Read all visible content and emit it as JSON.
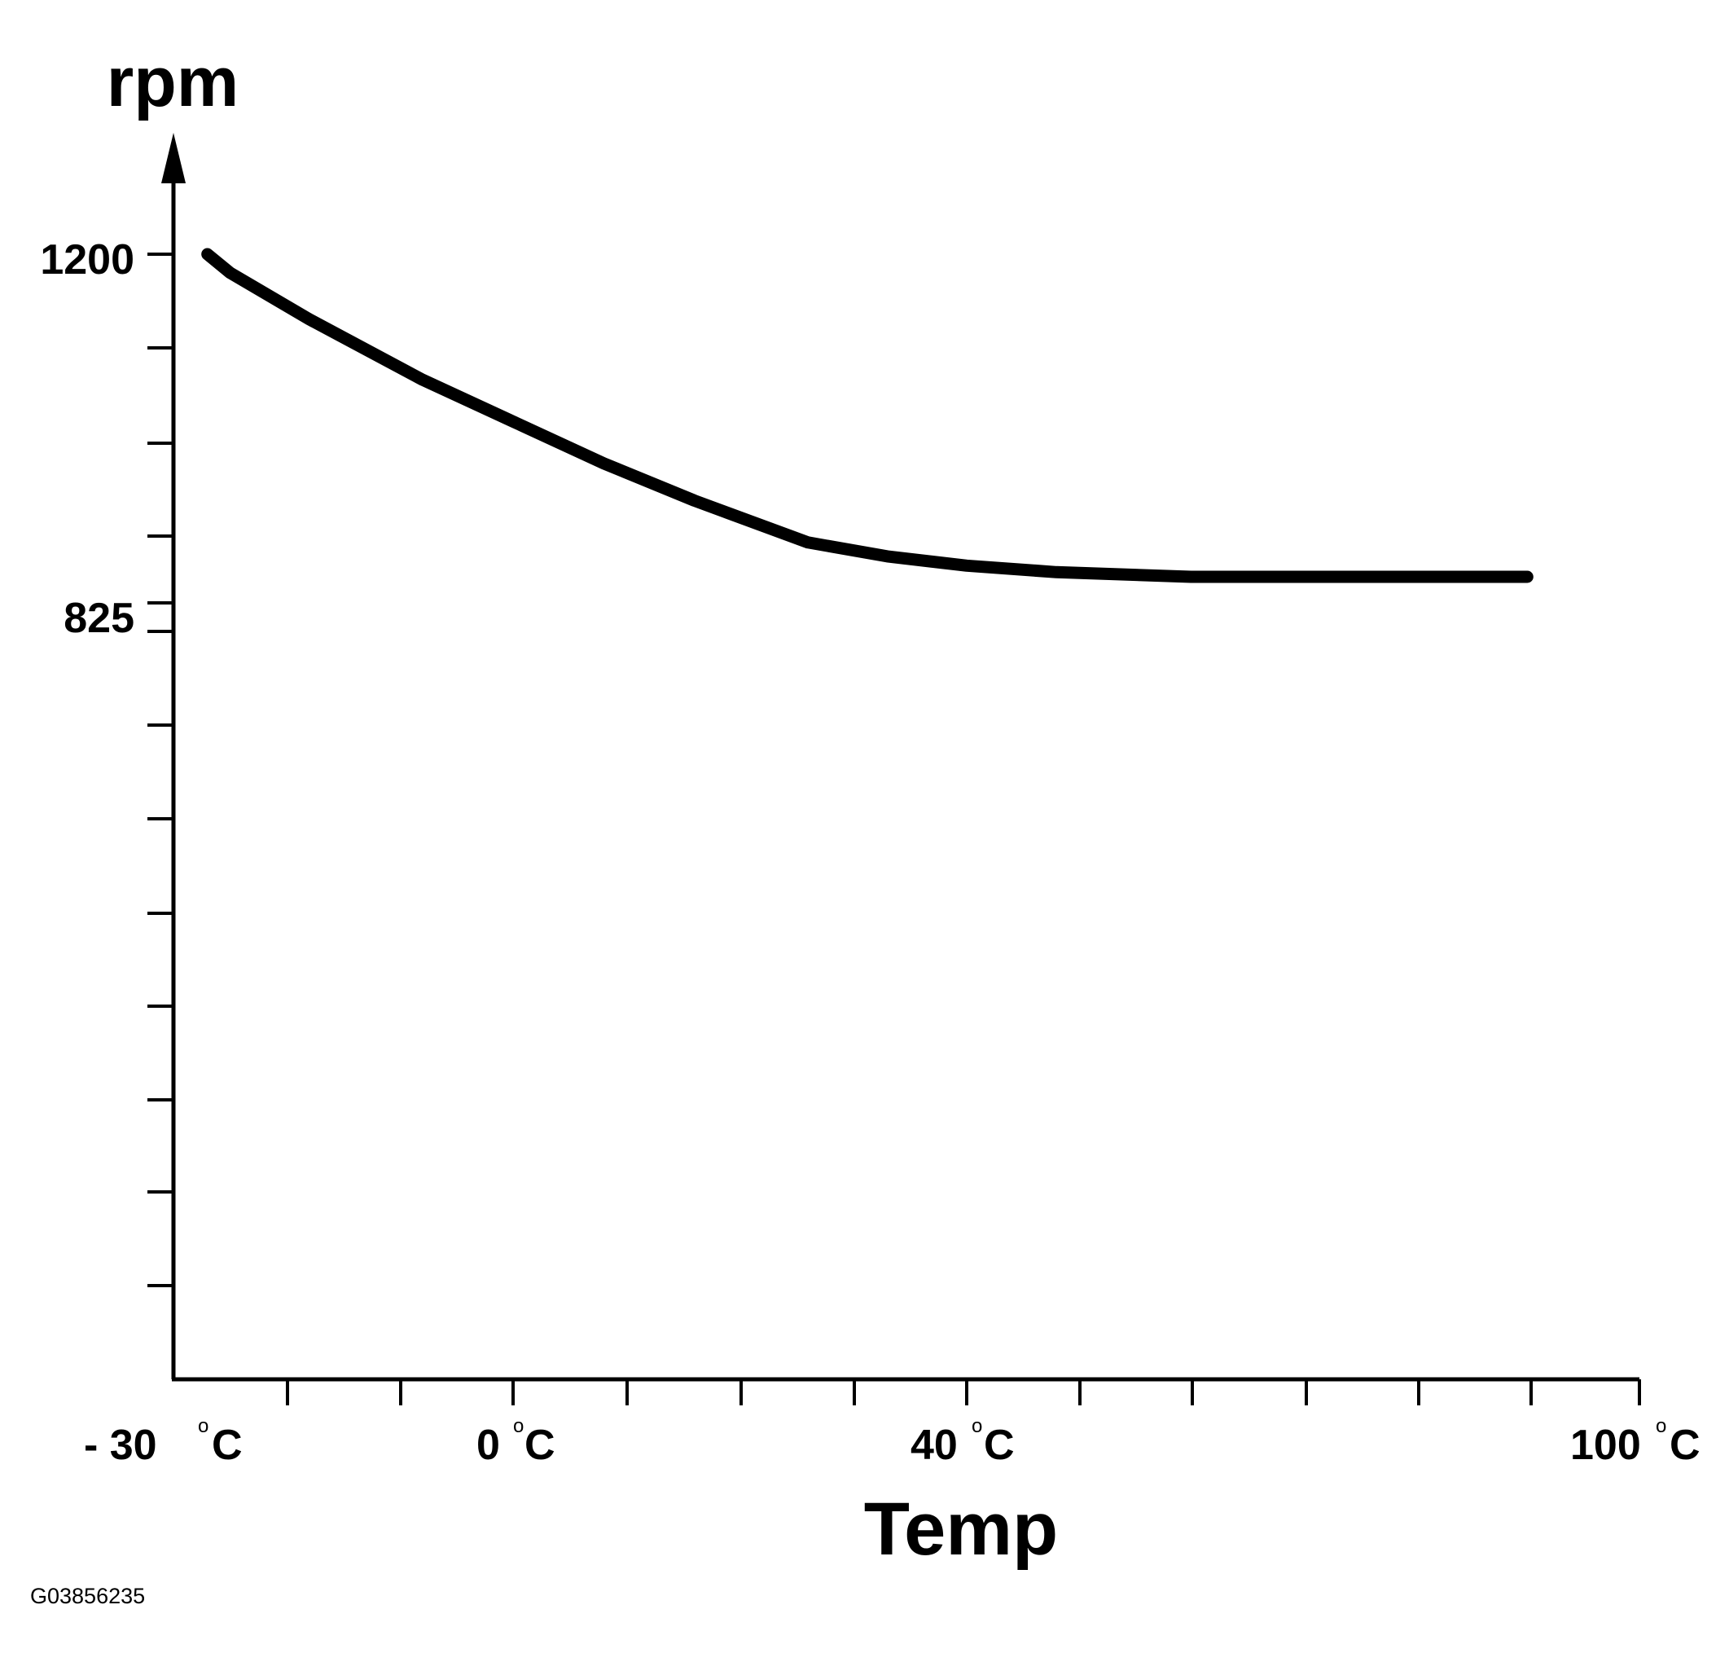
{
  "chart_data": {
    "type": "line",
    "title": "",
    "xlabel": "Temp",
    "ylabel": "rpm",
    "xlim": [
      -30,
      100
    ],
    "ylim": [
      0,
      1200
    ],
    "x_ticks": [
      -30,
      0,
      40,
      100
    ],
    "x_tick_labels": [
      "- 30",
      "0",
      "40",
      "100"
    ],
    "x_unit_symbol": "C",
    "degree_mark": "o",
    "y_ticks": [
      825,
      1200
    ],
    "y_tick_labels": [
      "825",
      "1200"
    ],
    "grid": false,
    "legend": "none",
    "series": [
      {
        "x": [
          -27,
          -25,
          -18,
          -8,
          0,
          8,
          16,
          26,
          33,
          40,
          48,
          60,
          70,
          80,
          90
        ],
        "y": [
          1200,
          1180,
          1130,
          1065,
          1020,
          975,
          935,
          890,
          875,
          865,
          858,
          853,
          853,
          853,
          853
        ]
      }
    ]
  },
  "figure_code": "G03856235",
  "colors": {
    "line": "#000000",
    "background": "#ffffff"
  }
}
